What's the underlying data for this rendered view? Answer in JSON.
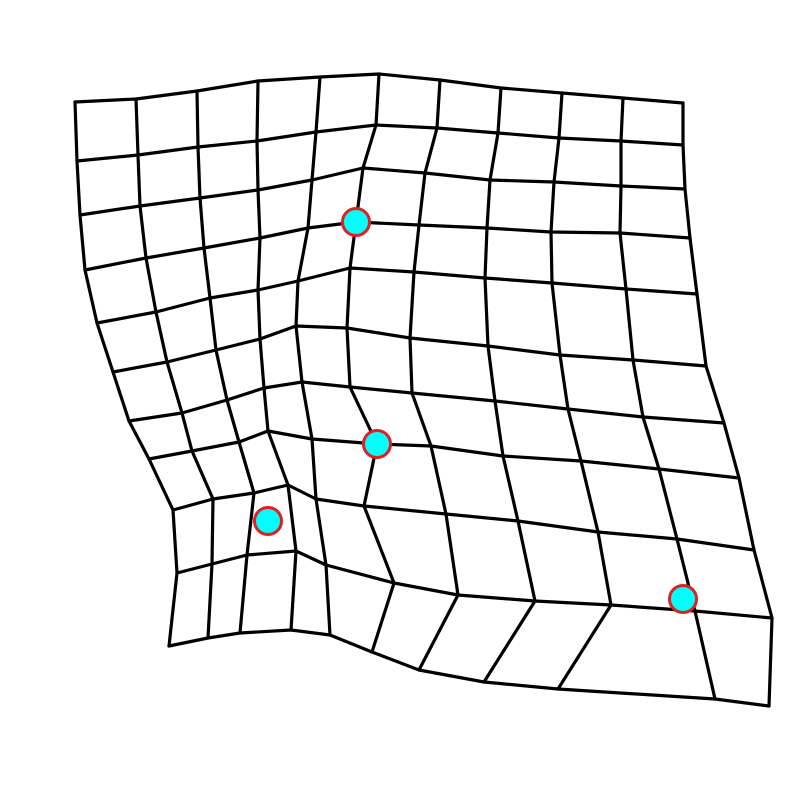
{
  "diagram": {
    "type": "warped-grid",
    "grid": {
      "columns": 10,
      "rows": 10,
      "line_color": "#000000"
    },
    "control_points": {
      "count": 4,
      "fill_color": "#00ffff",
      "stroke_color": "#e02020"
    }
  }
}
